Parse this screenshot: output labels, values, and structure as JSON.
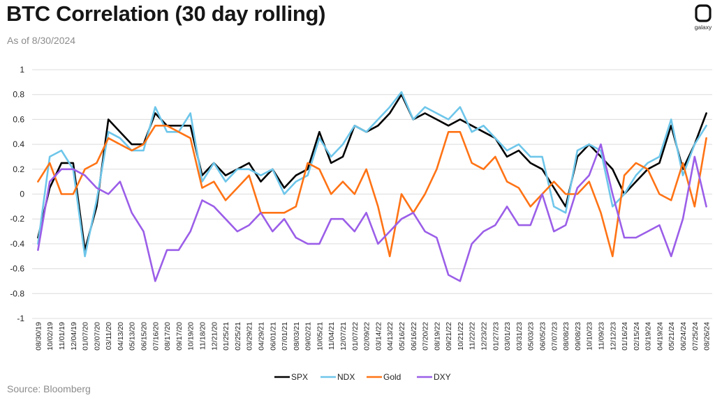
{
  "header": {
    "title": "BTC Correlation (30 day rolling)",
    "subtitle": "As of 8/30/2024"
  },
  "footer": {
    "source": "Source: Bloomberg"
  },
  "logo": {
    "icon": "galaxy-logo-icon",
    "text": "galaxy"
  },
  "chart_data": {
    "type": "line",
    "title": "BTC Correlation (30 day rolling)",
    "ylim": [
      -1,
      1
    ],
    "yticks": [
      1,
      0.8,
      0.6,
      0.4,
      0.2,
      0,
      -0.2,
      -0.4,
      -0.6,
      -0.8,
      -1
    ],
    "grid": true,
    "legend_position": "bottom",
    "x": [
      "08/30/19",
      "10/02/19",
      "11/01/19",
      "12/04/19",
      "01/07/20",
      "02/07/20",
      "03/11/20",
      "04/13/20",
      "05/13/20",
      "06/15/20",
      "07/16/20",
      "08/17/20",
      "09/17/20",
      "10/19/20",
      "11/18/20",
      "12/21/20",
      "01/25/21",
      "02/25/21",
      "03/29/21",
      "04/29/21",
      "06/01/21",
      "07/01/21",
      "08/03/21",
      "09/02/21",
      "10/05/21",
      "11/04/21",
      "12/07/21",
      "01/07/22",
      "02/09/22",
      "03/14/22",
      "04/13/22",
      "05/16/22",
      "06/16/22",
      "07/20/22",
      "08/19/22",
      "09/21/22",
      "10/21/22",
      "11/22/22",
      "12/23/22",
      "01/27/23",
      "03/01/23",
      "03/31/23",
      "05/03/23",
      "06/05/23",
      "07/07/23",
      "08/08/23",
      "09/08/23",
      "10/10/23",
      "11/09/23",
      "12/12/23",
      "01/16/24",
      "02/15/24",
      "03/19/24",
      "04/19/24",
      "05/21/24",
      "06/24/24",
      "07/25/24",
      "08/26/24"
    ],
    "series": [
      {
        "name": "SPX",
        "color": "#000000",
        "values": [
          -0.35,
          0.05,
          0.25,
          0.25,
          -0.45,
          -0.1,
          0.6,
          0.5,
          0.4,
          0.4,
          0.65,
          0.55,
          0.55,
          0.55,
          0.15,
          0.25,
          0.15,
          0.2,
          0.25,
          0.1,
          0.2,
          0.05,
          0.15,
          0.2,
          0.5,
          0.25,
          0.3,
          0.55,
          0.5,
          0.55,
          0.65,
          0.8,
          0.6,
          0.65,
          0.6,
          0.55,
          0.6,
          0.55,
          0.5,
          0.45,
          0.3,
          0.35,
          0.25,
          0.2,
          0.05,
          -0.1,
          0.3,
          0.4,
          0.3,
          0.2,
          0.0,
          0.1,
          0.2,
          0.25,
          0.55,
          0.2,
          0.4,
          0.65
        ]
      },
      {
        "name": "NDX",
        "color": "#6ec6ea",
        "values": [
          -0.4,
          0.3,
          0.35,
          0.2,
          -0.5,
          -0.05,
          0.5,
          0.45,
          0.35,
          0.35,
          0.7,
          0.5,
          0.5,
          0.65,
          0.1,
          0.25,
          0.1,
          0.2,
          0.2,
          0.15,
          0.2,
          0.0,
          0.1,
          0.15,
          0.45,
          0.3,
          0.4,
          0.55,
          0.5,
          0.6,
          0.7,
          0.82,
          0.6,
          0.7,
          0.65,
          0.6,
          0.7,
          0.5,
          0.55,
          0.45,
          0.35,
          0.4,
          0.3,
          0.3,
          -0.1,
          -0.15,
          0.35,
          0.4,
          0.35,
          -0.1,
          0.0,
          0.15,
          0.25,
          0.3,
          0.6,
          0.15,
          0.4,
          0.55
        ]
      },
      {
        "name": "Gold",
        "color": "#ff7315",
        "values": [
          0.1,
          0.25,
          0.0,
          0.0,
          0.2,
          0.25,
          0.45,
          0.4,
          0.35,
          0.4,
          0.55,
          0.55,
          0.5,
          0.45,
          0.05,
          0.1,
          -0.05,
          0.05,
          0.15,
          -0.15,
          -0.15,
          -0.15,
          -0.1,
          0.25,
          0.2,
          0.0,
          0.1,
          0.0,
          0.2,
          -0.1,
          -0.5,
          0.0,
          -0.15,
          0.0,
          0.2,
          0.5,
          0.5,
          0.25,
          0.2,
          0.3,
          0.1,
          0.05,
          -0.1,
          0.0,
          0.1,
          0.0,
          0.0,
          0.1,
          -0.15,
          -0.5,
          0.15,
          0.25,
          0.2,
          0.0,
          -0.05,
          0.25,
          -0.1,
          0.45
        ]
      },
      {
        "name": "DXY",
        "color": "#9b5ee8",
        "values": [
          -0.45,
          0.1,
          0.2,
          0.2,
          0.15,
          0.05,
          0.0,
          0.1,
          -0.15,
          -0.3,
          -0.7,
          -0.45,
          -0.45,
          -0.3,
          -0.05,
          -0.1,
          -0.2,
          -0.3,
          -0.25,
          -0.15,
          -0.3,
          -0.2,
          -0.35,
          -0.4,
          -0.4,
          -0.2,
          -0.2,
          -0.3,
          -0.15,
          -0.4,
          -0.3,
          -0.2,
          -0.15,
          -0.3,
          -0.35,
          -0.65,
          -0.7,
          -0.4,
          -0.3,
          -0.25,
          -0.1,
          -0.25,
          -0.25,
          0.0,
          -0.3,
          -0.25,
          0.05,
          0.15,
          0.4,
          0.0,
          -0.35,
          -0.35,
          -0.3,
          -0.25,
          -0.5,
          -0.2,
          0.3,
          -0.1
        ]
      }
    ]
  }
}
